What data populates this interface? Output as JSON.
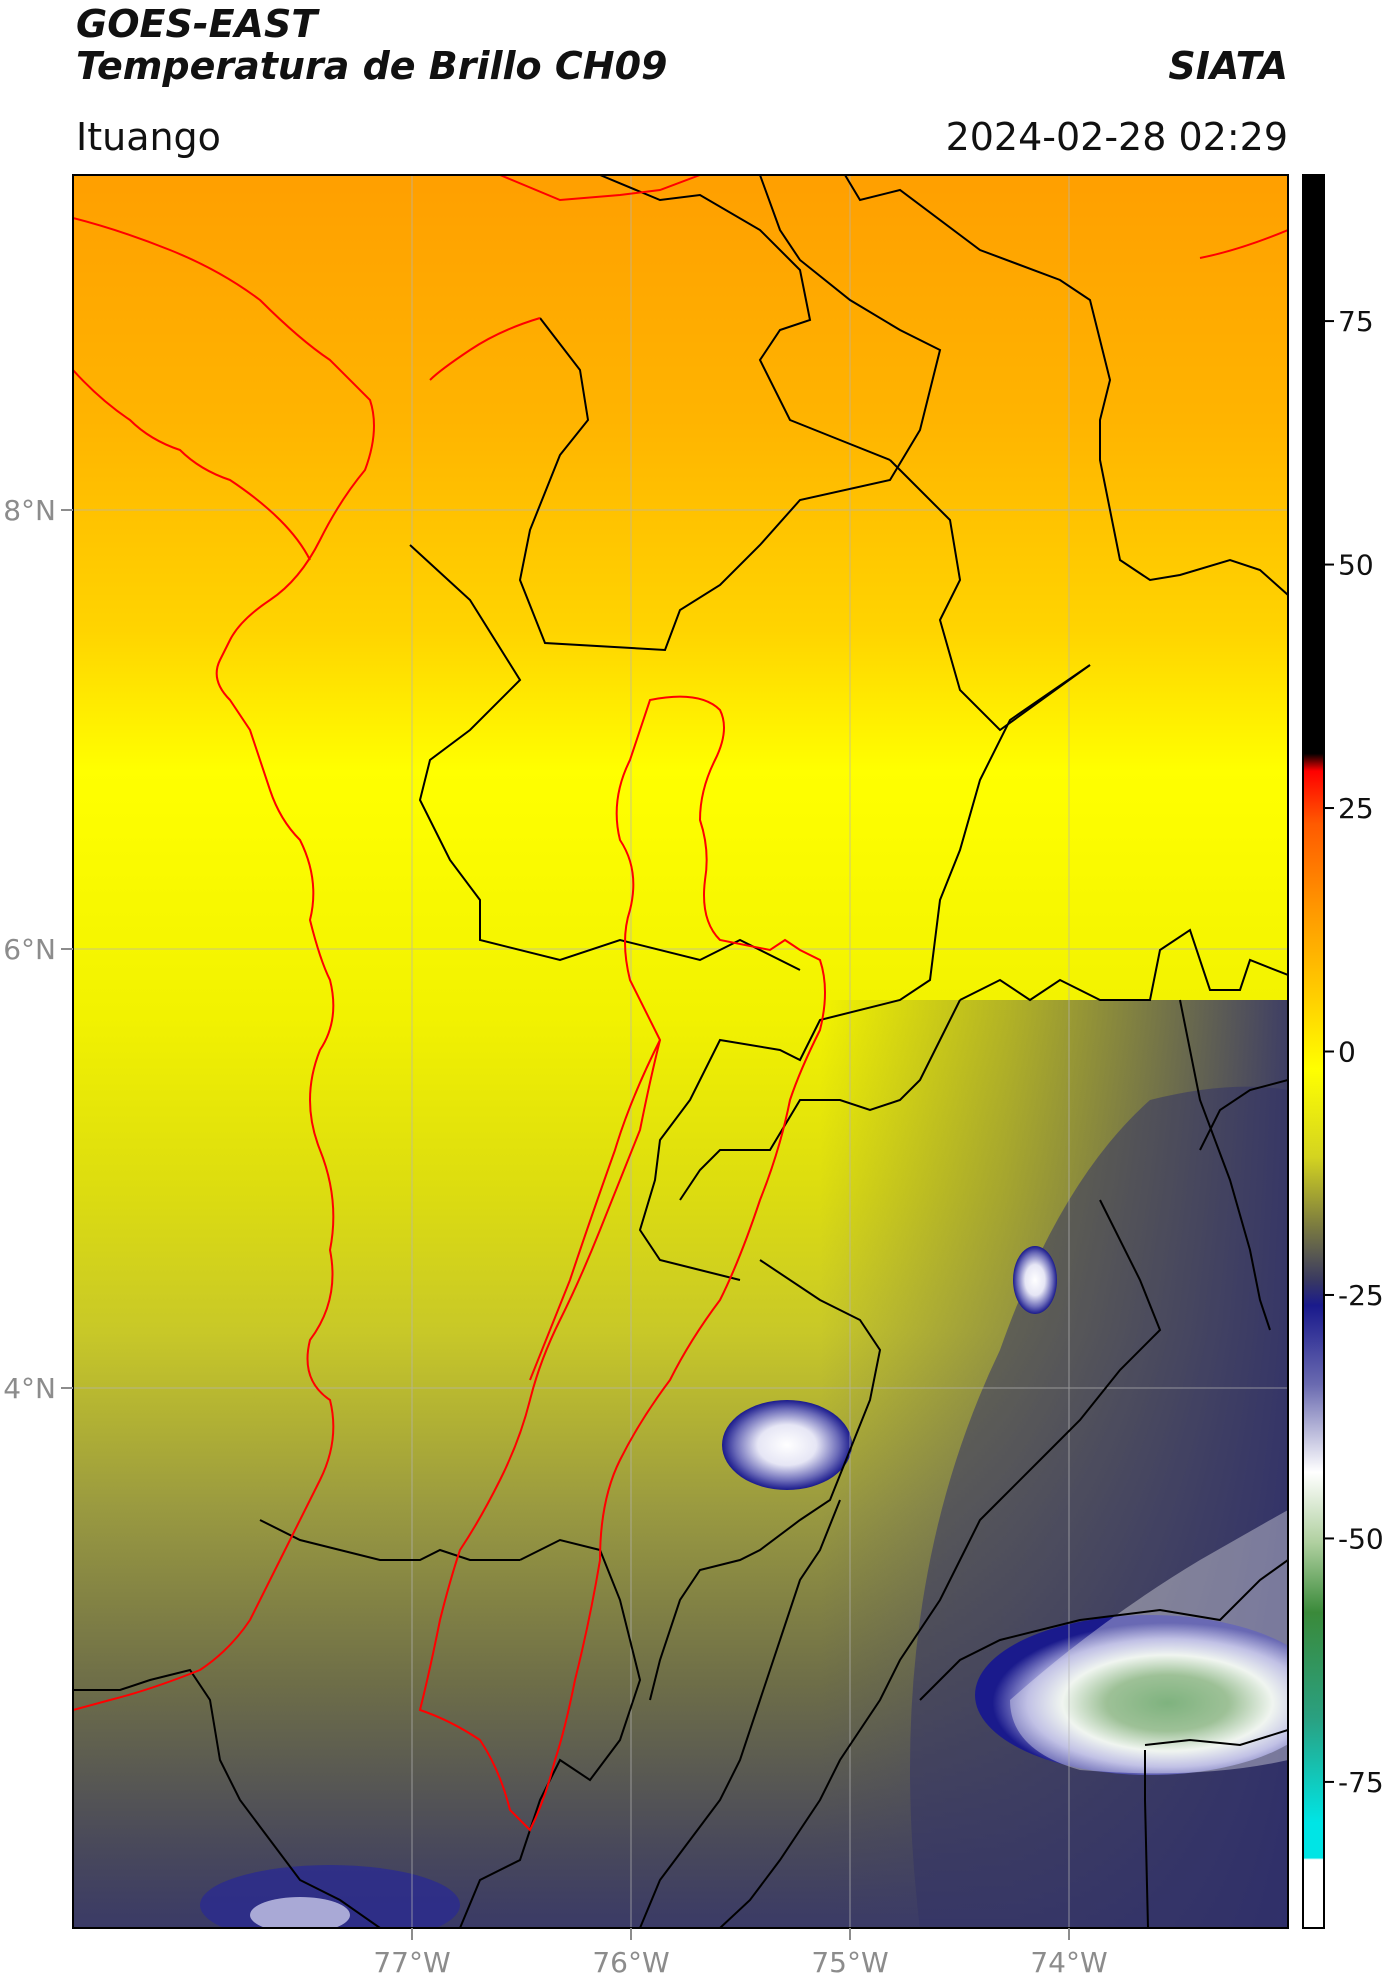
{
  "header": {
    "satellite": "GOES-EAST",
    "product": "Temperatura de Brillo CH09",
    "agency": "SIATA",
    "region": "Ituango",
    "timestamp": "2024-02-28 02:29"
  },
  "map": {
    "lon_ticks": [
      "77°W",
      "76°W",
      "75°W",
      "74°W"
    ],
    "lat_ticks": [
      "8°N",
      "6°N",
      "4°N"
    ]
  },
  "colorbar": {
    "ticks": [
      75,
      50,
      25,
      0,
      -25,
      -50,
      -75
    ],
    "labels": [
      "75",
      "50",
      "25",
      "0",
      "-25",
      "-50",
      "-75"
    ],
    "range": [
      -90,
      90
    ],
    "colors": {
      "black": "#000000",
      "red": "#ff0000",
      "orange": "#ff9900",
      "yellow": "#ffff00",
      "olive": "#6b6b3a",
      "navy": "#1a1a8c",
      "white": "#ffffff",
      "green": "#3a8a3a",
      "cyan": "#00e5e5"
    }
  }
}
